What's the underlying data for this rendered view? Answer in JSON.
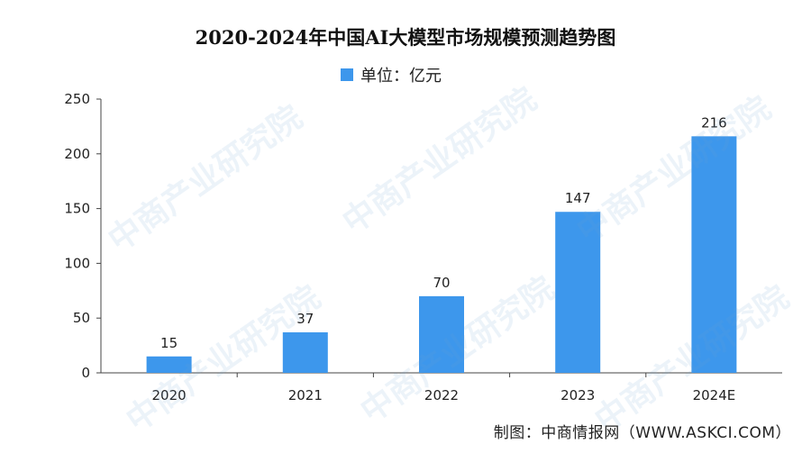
{
  "chart_data": {
    "type": "bar",
    "title": "2020-2024年中国AI大模型市场规模预测趋势图",
    "legend": "单位：亿元",
    "legend_position": "top-center",
    "categories": [
      "2020",
      "2021",
      "2022",
      "2023",
      "2024E"
    ],
    "values": [
      15,
      37,
      70,
      147,
      216
    ],
    "data_labels": [
      "15",
      "37",
      "70",
      "147",
      "216"
    ],
    "ylim": [
      0,
      250
    ],
    "yticks": [
      0,
      50,
      100,
      150,
      200,
      250
    ],
    "ytick_labels": [
      "0",
      "50",
      "100",
      "150",
      "200",
      "250"
    ],
    "grid": false,
    "bar_color": "#3d97ec"
  },
  "source": "制图：中商情报网（WWW.ASKCI.COM）",
  "watermark": "中商产业研究院"
}
